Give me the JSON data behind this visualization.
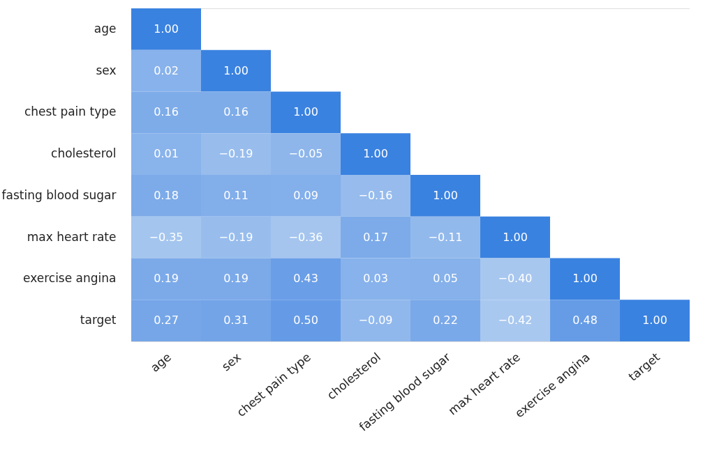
{
  "chart_data": {
    "type": "heatmap",
    "categories": [
      "age",
      "sex",
      "chest pain type",
      "cholesterol",
      "fasting blood sugar",
      "max heart rate",
      "exercise angina",
      "target"
    ],
    "y_categories": [
      "age",
      "sex",
      "chest pain type",
      "cholesterol",
      "fasting blood sugar",
      "max heart rate",
      "exercise angina",
      "target"
    ],
    "cells": [
      [
        1.0,
        null,
        null,
        null,
        null,
        null,
        null,
        null
      ],
      [
        0.02,
        1.0,
        null,
        null,
        null,
        null,
        null,
        null
      ],
      [
        0.16,
        0.16,
        1.0,
        null,
        null,
        null,
        null,
        null
      ],
      [
        0.01,
        -0.19,
        -0.05,
        1.0,
        null,
        null,
        null,
        null
      ],
      [
        0.18,
        0.11,
        0.09,
        -0.16,
        1.0,
        null,
        null,
        null
      ],
      [
        -0.35,
        -0.19,
        -0.36,
        0.17,
        -0.11,
        1.0,
        null,
        null
      ],
      [
        0.19,
        0.19,
        0.43,
        0.03,
        0.05,
        -0.4,
        1.0,
        null
      ],
      [
        0.27,
        0.31,
        0.5,
        -0.09,
        0.22,
        -0.42,
        0.48,
        1.0
      ]
    ],
    "cell_labels": [
      [
        "1.00",
        null,
        null,
        null,
        null,
        null,
        null,
        null
      ],
      [
        "0.02",
        "1.00",
        null,
        null,
        null,
        null,
        null,
        null
      ],
      [
        "0.16",
        "0.16",
        "1.00",
        null,
        null,
        null,
        null,
        null
      ],
      [
        "0.01",
        "−0.19",
        "−0.05",
        "1.00",
        null,
        null,
        null,
        null
      ],
      [
        "0.18",
        "0.11",
        "0.09",
        "−0.16",
        "1.00",
        null,
        null,
        null
      ],
      [
        "−0.35",
        "−0.19",
        "−0.36",
        "0.17",
        "−0.11",
        "1.00",
        null,
        null
      ],
      [
        "0.19",
        "0.19",
        "0.43",
        "0.03",
        "0.05",
        "−0.40",
        "1.00",
        null
      ],
      [
        "0.27",
        "0.31",
        "0.50",
        "−0.09",
        "0.22",
        "−0.42",
        "0.48",
        "1.00"
      ]
    ]
  }
}
